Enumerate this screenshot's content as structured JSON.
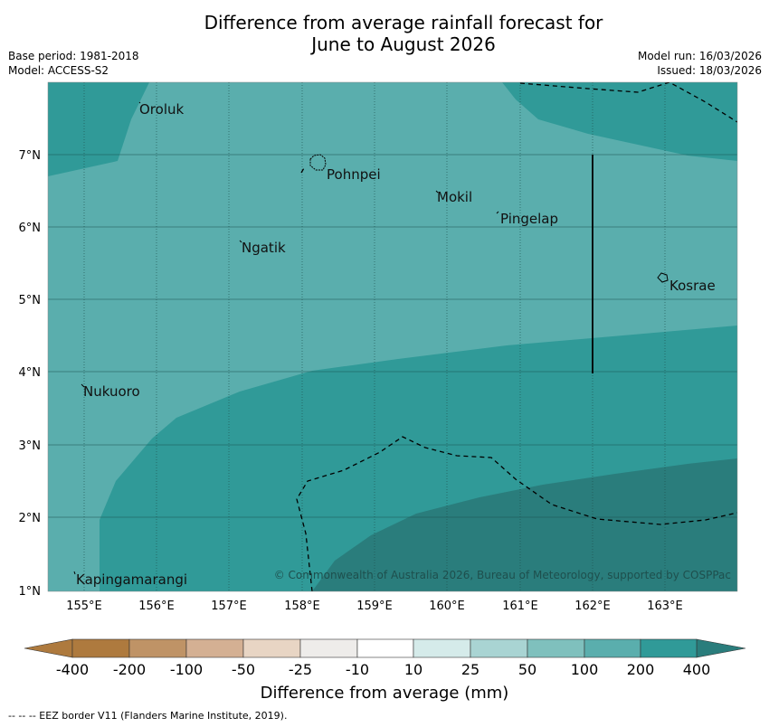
{
  "title": {
    "line1": "Difference from average rainfall forecast for",
    "line2": "June to August 2026"
  },
  "info_left": {
    "base_period": "Base period: 1981-2018",
    "model": "Model: ACCESS-S2"
  },
  "info_right": {
    "model_run": "Model run: 16/03/2026",
    "issued": "Issued: 18/03/2026"
  },
  "map": {
    "lon_labels": [
      "155°E",
      "156°E",
      "157°E",
      "158°E",
      "159°E",
      "160°E",
      "161°E",
      "162°E",
      "163°E"
    ],
    "lat_labels": [
      "7°N",
      "6°N",
      "5°N",
      "4°N",
      "3°N",
      "2°N",
      "1°N"
    ],
    "places": [
      "Oroluk",
      "Pohnpei",
      "Mokil",
      "Pingelap",
      "Ngatik",
      "Kosrae",
      "Nukuoro",
      "Kapingamarangi"
    ],
    "copyright": "© Commonwealth of Australia 2026, Bureau of Meteorology, supported by COSPPac"
  },
  "colorbar": {
    "colors": [
      "#ae7a3e",
      "#bf9366",
      "#d4b093",
      "#e8d5c4",
      "#eeecea",
      "#ffffff",
      "#d5ebea",
      "#a9d4d3",
      "#7fc0bd",
      "#5aaead",
      "#309a98",
      "#2a7d7c"
    ],
    "labels": [
      "-400",
      "-200",
      "-100",
      "-50",
      "-25",
      "-10",
      "10",
      "25",
      "50",
      "100",
      "200",
      "400"
    ],
    "title": "Difference from average (mm)"
  },
  "footer": "--  --  -- EEZ border V11 (Flanders Marine Institute, 2019)."
}
